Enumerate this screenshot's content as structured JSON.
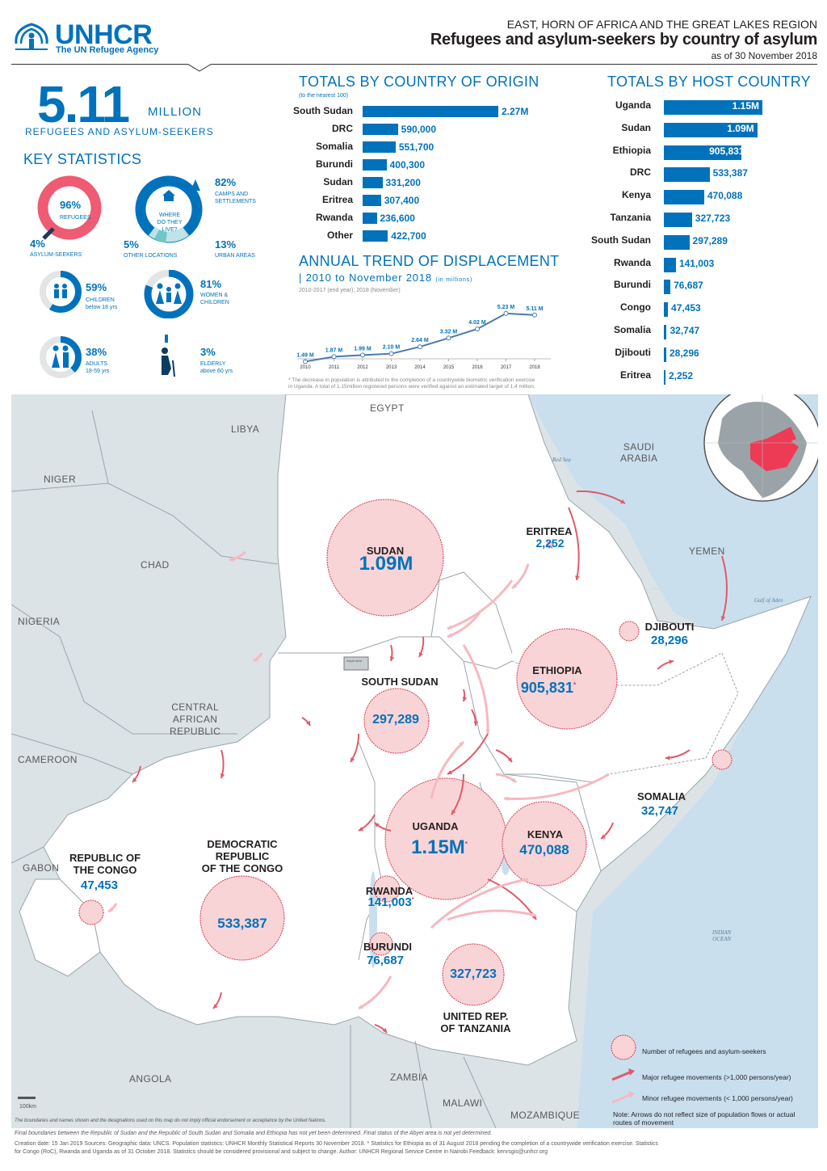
{
  "header": {
    "logo": "UNHCR",
    "logo_sub": "The UN Refugee Agency",
    "region": "EAST, HORN OF AFRICA AND THE GREAT LAKES REGION",
    "title": "Refugees and asylum-seekers by country of asylum",
    "date": "as of 30 November 2018"
  },
  "headline": {
    "value": "5.11",
    "unit": "MILLION",
    "caption": "REFUGEES AND ASYLUM-SEEKERS"
  },
  "key_stats": {
    "heading": "KEY STATISTICS",
    "refugees": {
      "pct": "96%",
      "label": "REFUGEES",
      "fraction": 0.96
    },
    "asylum": {
      "pct": "4%",
      "label": "ASYLUM-SEEKERS"
    },
    "camps": {
      "pct": "82%",
      "label1": "CAMPS and",
      "label2": "SETTLEMENTS",
      "fraction": 0.82
    },
    "where_q1": "WHERE DO THEY",
    "where_q2": "LIVE?",
    "other": {
      "pct": "5%",
      "label": "OTHER LOCATIONS"
    },
    "urban": {
      "pct": "13%",
      "label": "URBAN AREAS"
    },
    "children": {
      "pct": "59%",
      "label1": "CHILDREN",
      "label2": "below 18 yrs",
      "fraction": 0.59
    },
    "women": {
      "pct": "81%",
      "label1": "WOMEN &",
      "label2": "CHILDREN",
      "fraction": 0.81
    },
    "adults": {
      "pct": "38%",
      "label1": "ADULTS",
      "label2": "18-59 yrs",
      "fraction": 0.38
    },
    "elderly": {
      "pct": "3%",
      "label1": "ELDERLY",
      "label2": "above 60 yrs",
      "fraction": 0.03
    }
  },
  "origin": {
    "heading": "TOTALS BY COUNTRY OF ORIGIN",
    "note": "(to the nearest 100)"
  },
  "host": {
    "heading": "TOTALS BY HOST COUNTRY"
  },
  "trend": {
    "heading": "ANNUAL TREND OF DISPLACEMENT",
    "sub": "2010 to November 2018",
    "sub_unit": "(in millions)",
    "period_note": "2010-2017 (end year); 2018 (November)",
    "footnote_line1": "* The decrease in population is attributed to the completion of a countrywide biometric verification exercise",
    "footnote_line2": "in Uganda. A total of 1.15million registered persons were verified against an estimated target of 1.4 million."
  },
  "chart_data": [
    {
      "type": "bar",
      "title": "TOTALS BY COUNTRY OF ORIGIN",
      "categories": [
        "South Sudan",
        "DRC",
        "Somalia",
        "Burundi",
        "Sudan",
        "Eritrea",
        "Rwanda",
        "Other"
      ],
      "values": [
        2270000,
        590000,
        551700,
        400300,
        331200,
        307400,
        236600,
        422700
      ],
      "labels": [
        "2.27M",
        "590,000",
        "551,700",
        "400,300",
        "331,200",
        "307,400",
        "236,600",
        "422,700"
      ]
    },
    {
      "type": "bar",
      "title": "TOTALS BY HOST COUNTRY",
      "categories": [
        "Uganda",
        "Sudan",
        "Ethiopia",
        "DRC",
        "Kenya",
        "Tanzania",
        "South Sudan",
        "Rwanda",
        "Burundi",
        "Congo",
        "Somalia",
        "Djibouti",
        "Eritrea"
      ],
      "values": [
        1150000,
        1090000,
        905831,
        533387,
        470088,
        327723,
        297289,
        141003,
        76687,
        47453,
        32747,
        28296,
        2252
      ],
      "labels": [
        "1.15M",
        "1.09M",
        "905,831",
        "533,387",
        "470,088",
        "327,723",
        "297,289",
        "141,003",
        "76,687",
        "47,453",
        "32,747",
        "28,296",
        "2,252"
      ]
    },
    {
      "type": "line",
      "title": "ANNUAL TREND OF DISPLACEMENT",
      "x": [
        "2010",
        "2011",
        "2012",
        "2013",
        "2014",
        "2015",
        "2016",
        "2017",
        "2018"
      ],
      "values": [
        1.49,
        1.87,
        1.99,
        2.1,
        2.64,
        3.32,
        4.02,
        5.23,
        5.11
      ],
      "labels": [
        "1.49 M",
        "1.87 M",
        "1.99 M",
        "2.10 M",
        "2.64 M",
        "3.32 M",
        "4.02 M",
        "5.23 M",
        "5.11 M"
      ]
    }
  ],
  "map": {
    "countries": {
      "egypt": "EGYPT",
      "libya": "LIBYA",
      "niger": "NIGER",
      "chad": "CHAD",
      "nigeria": "NIGERIA",
      "saudi1": "SAUDI",
      "saudi2": "ARABIA",
      "yemen": "YEMEN",
      "car1": "CENTRAL",
      "car2": "AFRICAN",
      "car3": "REPUBLIC",
      "cameroon": "CAMEROON",
      "gabon": "GABON",
      "angola": "ANGOLA",
      "zambia": "ZAMBIA",
      "malawi": "MALAWI",
      "mozambique": "MOZAMBIQUE"
    },
    "seas": {
      "red_sea": "Red Sea",
      "gulf": "Gulf of Aden",
      "indian1": "INDIAN",
      "indian2": "OCEAN",
      "abyei": "Abyei area"
    },
    "hosts": {
      "sudan": {
        "name": "SUDAN",
        "value": "1.09M"
      },
      "eritrea": {
        "name": "ERITREA",
        "value": "2,252"
      },
      "djibouti": {
        "name": "DJIBOUTI",
        "value": "28,296"
      },
      "ethiopia": {
        "name": "ETHIOPIA",
        "value": "905,831"
      },
      "south_sudan": {
        "name": "SOUTH SUDAN",
        "value": "297,289"
      },
      "somalia": {
        "name": "SOMALIA",
        "value": "32,747"
      },
      "uganda": {
        "name": "UGANDA",
        "value": "1.15M"
      },
      "kenya": {
        "name": "KENYA",
        "value": "470,088"
      },
      "rwanda": {
        "name": "RWANDA",
        "value": "141,003"
      },
      "burundi": {
        "name": "BURUNDI",
        "value": "76,687"
      },
      "tanzania": {
        "name1": "UNITED REP.",
        "name2": "OF TANZANIA",
        "value": "327,723"
      },
      "drc": {
        "name1": "DEMOCRATIC",
        "name2": "REPUBLIC",
        "name3": "OF THE CONGO",
        "value": "533,387"
      },
      "congo": {
        "name1": "REPUBLIC OF",
        "name2": "THE CONGO",
        "value": "47,453"
      }
    },
    "star": "*",
    "legend": {
      "circles": "Number of refugees and asylum-seekers",
      "major": "Major refugee movements (>1,000 persons/year)",
      "minor": "Minor refugee movements (< 1,000 persons/year)",
      "note1": "Note: Arrows do not reflect size of population flows or actual",
      "note2": "routes of movement"
    },
    "scale": "100km",
    "disclaimer": "The boundaries and names shown and the designations used on this map do not imply official endorsement or acceptance by the United Nations."
  },
  "footer": {
    "line1": "Final boundaries between the Republic of Sudan and the Republic of South Sudan and Somalia and Ethiopia has not yet been determined. Final status of the Abyei area is not yet determined.",
    "line2": "Creation date: 15 Jan 2019    Sources: Geographic data: UNCS. Population statistics: UNHCR Monthly Statistical Reports 30 November 2018. * Statistics for Ethiopia as of 31 August 2018 pending the completion of a countrywide verification exercise. Statistics",
    "line3": "for Congo (RoC), Rwanda and Uganda as of 31 October 2018. Statistics should be considered provisional and subject to change.    Author: UNHCR Regional Service Centre in Nairobi    Feedback: kenrsgis@unhcr.org"
  },
  "colors": {
    "brand": "#0072bc",
    "circle_fill": "#f9d4d6",
    "circle_stroke": "#d23b4f",
    "arrow": "#e05a6b",
    "land": "#ffffff",
    "neighbor": "#dbe3e6",
    "sea": "#c9dfee"
  }
}
